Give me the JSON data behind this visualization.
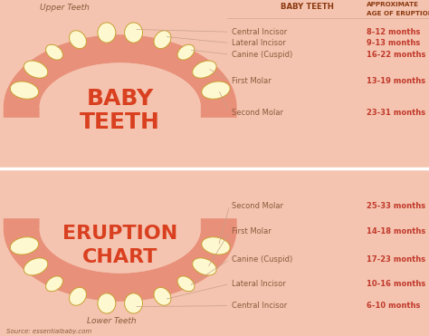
{
  "bg_color": "#f5c4b0",
  "bg_light": "#f9d8cc",
  "gum_outer": "#e8907a",
  "gum_inner": "#f5c4b0",
  "tooth_fill": "#fdf8d0",
  "tooth_edge": "#c8a030",
  "title_color": "#d94020",
  "label_color": "#8b5a3a",
  "age_color": "#c0392b",
  "line_color": "#c8a088",
  "header_color": "#8b3a10",
  "divider_color": "#ffffff",
  "upper_label": "Upper Teeth",
  "lower_label": "Lower Teeth",
  "source_text": "Source: essentialbaby.com",
  "upper_teeth_data": [
    {
      "name": "Central Incisor",
      "age": "8-12 months"
    },
    {
      "name": "Lateral Incisor",
      "age": "9-13 months"
    },
    {
      "name": "Canine (Cuspid)",
      "age": "16-22 months"
    },
    {
      "name": "First Molar",
      "age": "13-19 months"
    },
    {
      "name": "Second Molar",
      "age": "23-31 months"
    }
  ],
  "lower_teeth_data": [
    {
      "name": "Second Molar",
      "age": "25-33 months"
    },
    {
      "name": "First Molar",
      "age": "14-18 months"
    },
    {
      "name": "Canine (Cuspid)",
      "age": "17-23 months"
    },
    {
      "name": "Lateral Incisor",
      "age": "10-16 months"
    },
    {
      "name": "Central Incisor",
      "age": "6-10 months"
    }
  ]
}
